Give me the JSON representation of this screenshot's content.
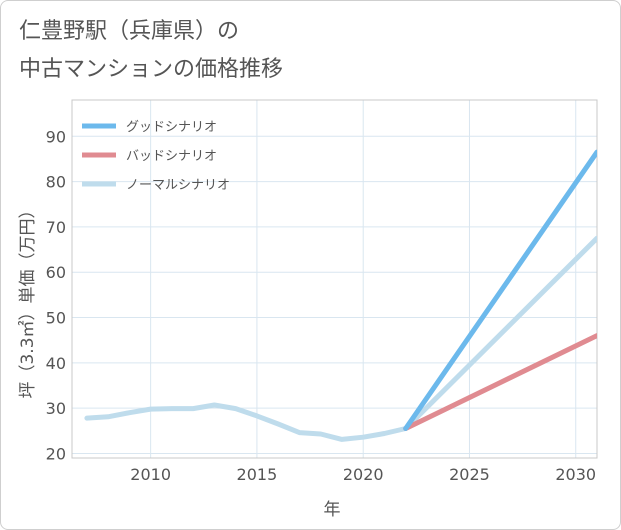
{
  "title": {
    "line1": "仁豊野駅（兵庫県）の",
    "line2": "中古マンションの価格推移"
  },
  "chart_data": {
    "type": "line",
    "title": "仁豊野駅（兵庫県）の中古マンションの価格推移",
    "xlabel": "年",
    "ylabel": "坪（3.3㎡）単価（万円）",
    "xlim": [
      2006.3,
      2031
    ],
    "ylim": [
      19,
      98
    ],
    "xticks": [
      2010,
      2015,
      2020,
      2025,
      2030
    ],
    "yticks": [
      20,
      30,
      40,
      50,
      60,
      70,
      80,
      90
    ],
    "grid": true,
    "legend_position": "top-left",
    "series": [
      {
        "name": "グッドシナリオ",
        "color": "#6cb9ec",
        "x": [
          2022,
          2031
        ],
        "y": [
          25.5,
          86.5
        ]
      },
      {
        "name": "バッドシナリオ",
        "color": "#e08b91",
        "x": [
          2022,
          2031
        ],
        "y": [
          25.5,
          46
        ]
      },
      {
        "name": "ノーマルシナリオ",
        "color": "#bfdcec",
        "x": [
          2007,
          2008,
          2009,
          2010,
          2011,
          2012,
          2013,
          2014,
          2015,
          2016,
          2017,
          2018,
          2019,
          2020,
          2021,
          2022,
          2031
        ],
        "y": [
          27.8,
          28.1,
          29,
          29.8,
          29.9,
          29.9,
          30.7,
          29.9,
          28.3,
          26.5,
          24.6,
          24.3,
          23.1,
          23.6,
          24.4,
          25.5,
          67.5
        ]
      }
    ]
  }
}
